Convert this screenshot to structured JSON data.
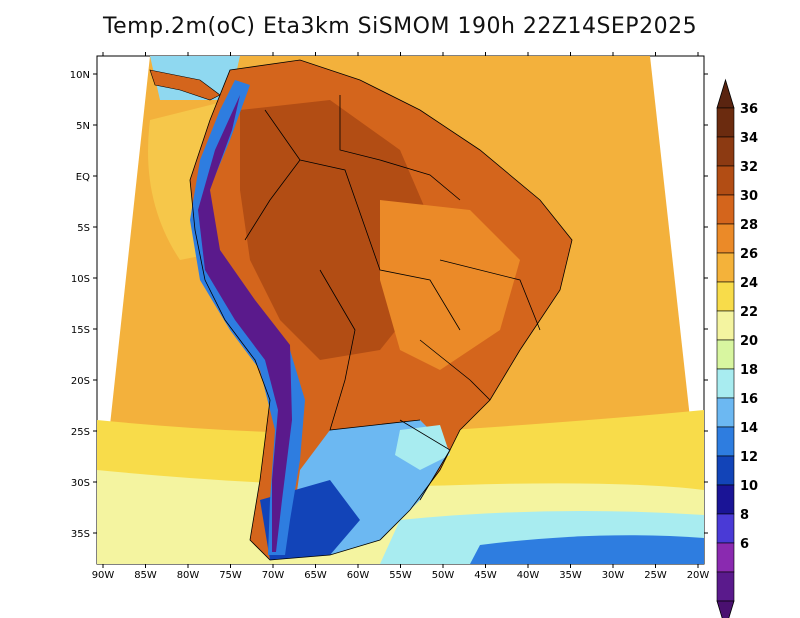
{
  "title": "Temp.2m(oC) Eta3km SiSMOM 190h 22Z14SEP2025",
  "map": {
    "lat_labels": [
      "10N",
      "5N",
      "EQ",
      "5S",
      "10S",
      "15S",
      "20S",
      "25S",
      "30S",
      "35S"
    ],
    "lon_labels": [
      "90W",
      "85W",
      "80W",
      "75W",
      "70W",
      "65W",
      "60W",
      "55W",
      "50W",
      "45W",
      "40W",
      "35W",
      "30W",
      "25W",
      "20W"
    ]
  },
  "colorbar": {
    "labels": [
      "36",
      "34",
      "32",
      "30",
      "28",
      "26",
      "24",
      "22",
      "20",
      "18",
      "16",
      "14",
      "12",
      "10",
      "8",
      "6"
    ],
    "colors": [
      "#6b2b0f",
      "#8c3a12",
      "#b24d14",
      "#d4651c",
      "#eb8a28",
      "#f4b23a",
      "#f8dc4a",
      "#f4f4a0",
      "#d8f6a0",
      "#a8ecf0",
      "#6cb8f2",
      "#2e7de0",
      "#1244b8",
      "#1a1496",
      "#4a3ad6",
      "#8a2ab0",
      "#5a1a8c"
    ],
    "top_color": "#5a2410",
    "bottom_color": "#4a1070"
  }
}
